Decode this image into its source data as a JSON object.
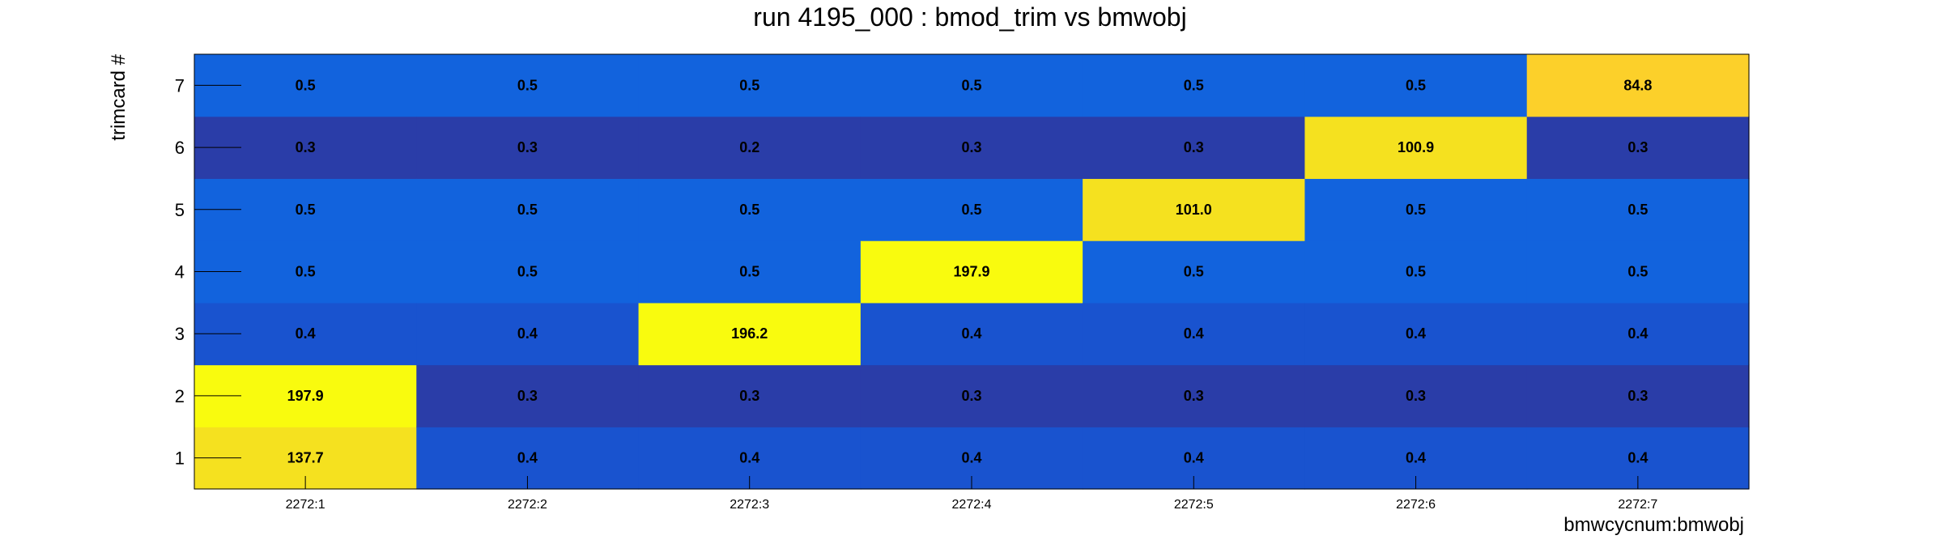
{
  "chart_data": {
    "type": "heatmap",
    "title": "run 4195_000 : bmod_trim vs bmwobj",
    "xlabel": "bmwcycnum:bmwobj",
    "ylabel": "trimcard #",
    "x_categories": [
      "2272:1",
      "2272:2",
      "2272:3",
      "2272:4",
      "2272:5",
      "2272:6",
      "2272:7"
    ],
    "y_categories": [
      "1",
      "2",
      "3",
      "4",
      "5",
      "6",
      "7"
    ],
    "values": [
      [
        137.7,
        197.9,
        0.4,
        0.5,
        0.5,
        0.3,
        0.5
      ],
      [
        0.4,
        0.3,
        0.4,
        0.5,
        0.5,
        0.3,
        0.5
      ],
      [
        0.4,
        0.3,
        196.2,
        0.5,
        0.5,
        0.2,
        0.5
      ],
      [
        0.4,
        0.3,
        0.4,
        197.9,
        0.5,
        0.3,
        0.5
      ],
      [
        0.4,
        0.3,
        0.4,
        0.5,
        101.0,
        0.3,
        0.5
      ],
      [
        0.4,
        0.3,
        0.4,
        0.5,
        0.5,
        100.9,
        0.5
      ],
      [
        0.4,
        0.3,
        0.4,
        0.5,
        0.5,
        0.3,
        84.8
      ]
    ],
    "value_format": "0.0",
    "grid": false,
    "colors": {
      "v0.2": "#2a3da8",
      "v0.3": "#2a3da8",
      "v0.4": "#1953cf",
      "v0.5": "#1263dd",
      "v84.8": "#fcd02a",
      "v100.9": "#f5e11f",
      "v101.0": "#f5e11f",
      "v137.7": "#f5e11f",
      "v196.2": "#f9fb0e",
      "v197.9": "#f9fb0e"
    }
  }
}
